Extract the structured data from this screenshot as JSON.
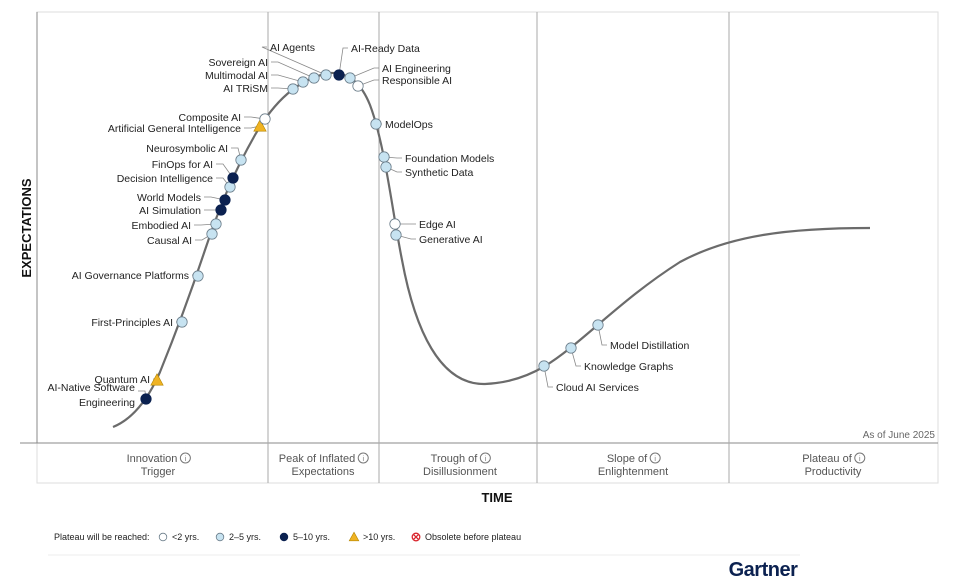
{
  "y_axis_label": "EXPECTATIONS",
  "x_axis_label": "TIME",
  "as_of": "As of June 2025",
  "phases": [
    {
      "line1": "Innovation",
      "line2": "Trigger"
    },
    {
      "line1": "Peak of Inflated",
      "line2": "Expectations"
    },
    {
      "line1": "Trough of",
      "line2": "Disillusionment"
    },
    {
      "line1": "Slope of",
      "line2": "Enlightenment"
    },
    {
      "line1": "Plateau of",
      "line2": "Productivity"
    }
  ],
  "colors": {
    "lt2": "#ffffff",
    "2to5": "#c7e3f1",
    "5to10": "#0b2150",
    "gt10": "#f0b323",
    "obsolete": "#d9262e",
    "curve": "#6b6b6b"
  },
  "legend": {
    "title": "Plateau will be reached:",
    "items": [
      {
        "key": "lt2",
        "label": "<2 yrs."
      },
      {
        "key": "2to5",
        "label": "2–5 yrs."
      },
      {
        "key": "5to10",
        "label": "5–10 yrs."
      },
      {
        "key": "gt10",
        "label": ">10 yrs."
      },
      {
        "key": "obsolete",
        "label": "Obsolete before plateau"
      }
    ]
  },
  "technologies": [
    {
      "name": "Quantum AI",
      "plateau": "gt10"
    },
    {
      "name": "AI-Native Software Engineering",
      "lines": [
        "AI-Native Software",
        "Engineering"
      ],
      "plateau": "5to10"
    },
    {
      "name": "First-Principles AI",
      "plateau": "2to5"
    },
    {
      "name": "AI Governance Platforms",
      "plateau": "2to5"
    },
    {
      "name": "Causal AI",
      "plateau": "2to5"
    },
    {
      "name": "Embodied AI",
      "plateau": "2to5"
    },
    {
      "name": "AI Simulation",
      "plateau": "5to10"
    },
    {
      "name": "World Models",
      "plateau": "5to10"
    },
    {
      "name": "Decision Intelligence",
      "plateau": "2to5"
    },
    {
      "name": "FinOps for AI",
      "plateau": "5to10"
    },
    {
      "name": "Neurosymbolic AI",
      "plateau": "2to5"
    },
    {
      "name": "Artificial General Intelligence",
      "plateau": "gt10"
    },
    {
      "name": "Composite AI",
      "plateau": "lt2"
    },
    {
      "name": "AI TRiSM",
      "plateau": "2to5"
    },
    {
      "name": "Multimodal AI",
      "plateau": "2to5"
    },
    {
      "name": "Sovereign AI",
      "plateau": "2to5"
    },
    {
      "name": "AI Agents",
      "plateau": "2to5"
    },
    {
      "name": "AI-Ready Data",
      "plateau": "5to10"
    },
    {
      "name": "AI Engineering",
      "plateau": "2to5"
    },
    {
      "name": "Responsible AI",
      "plateau": "lt2"
    },
    {
      "name": "ModelOps",
      "plateau": "2to5"
    },
    {
      "name": "Foundation Models",
      "plateau": "2to5"
    },
    {
      "name": "Synthetic Data",
      "plateau": "2to5"
    },
    {
      "name": "Edge AI",
      "plateau": "lt2"
    },
    {
      "name": "Generative AI",
      "plateau": "2to5"
    },
    {
      "name": "Cloud AI Services",
      "plateau": "2to5"
    },
    {
      "name": "Knowledge Graphs",
      "plateau": "2to5"
    },
    {
      "name": "Model Distillation",
      "plateau": "2to5"
    }
  ],
  "brand": "Gartner"
}
